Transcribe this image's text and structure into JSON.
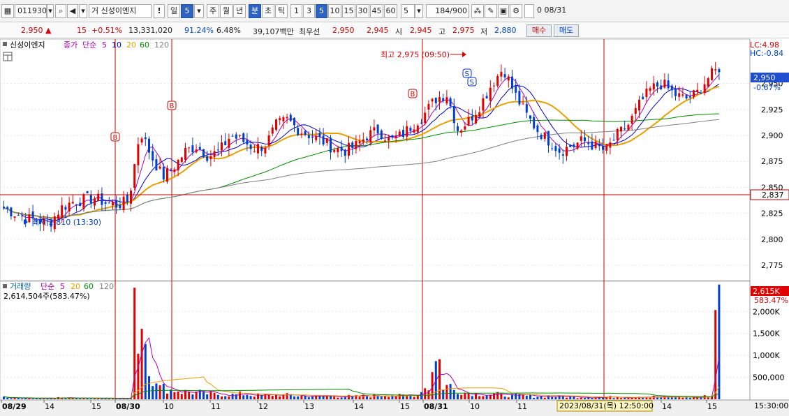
{
  "toolbar": {
    "code": "011930",
    "market_label": "거",
    "name": "신성이엔지",
    "warning": "!",
    "periods": [
      "일",
      "5",
      "주",
      "월",
      "년",
      "분",
      "초",
      "틱"
    ],
    "minutes": [
      "1",
      "3",
      "5",
      "10",
      "15",
      "30",
      "45",
      "60"
    ],
    "selected_minute": "5",
    "interval_value": "5",
    "bar_count": "184",
    "bar_total": "/900",
    "date": "08/31"
  },
  "quote": {
    "price": "2,950",
    "arrow": "▲",
    "change": "15",
    "change_pct": "+0.51%",
    "volume": "13,331,020",
    "ratio1": "91.24%",
    "ratio2": "6.48%",
    "amount": "39,107백만",
    "label_best": "최우선",
    "best_ask": "2,950",
    "best_bid": "2,945",
    "open_label": "시",
    "open": "2,945",
    "high_label": "고",
    "high": "2,975",
    "low_label": "저",
    "low": "2,880",
    "buy": "매수",
    "sell": "매도"
  },
  "price_panel": {
    "legend_name": "신성이엔지",
    "legend_ma": [
      "종가",
      "단순",
      "5",
      "10",
      "20",
      "60",
      "120"
    ],
    "lc": "LC:4.98",
    "hc": "HC:-0.84",
    "last_price": "2,950",
    "last_pct": "-0.67%",
    "crosshair_price": "2,837",
    "high_note": "최고 2,975 (09:50)",
    "low_note": "최저 2,810 (13:30)",
    "buy_marker": "B",
    "sell_marker": "S"
  },
  "volume_panel": {
    "legend": [
      "거래량",
      "단순",
      "5",
      "20",
      "60",
      "120"
    ],
    "info": "2,614,504주(583.47%)",
    "last_vol": "2,615K",
    "last_pct": "583.47%"
  },
  "time_axis": {
    "labels": [
      "08/29",
      "14",
      "15",
      "08/30",
      "10",
      "11",
      "12",
      "13",
      "14",
      "15",
      "08/31",
      "10",
      "11",
      "14",
      "15"
    ],
    "cursor_time": "2023/08/31(목) 12:50:00",
    "right_time": "15:30:00"
  },
  "chart_data": {
    "type": "candlestick",
    "price_ticks": [
      2775,
      2800,
      2825,
      2850,
      2875,
      2900,
      2925,
      2950
    ],
    "price_tick_labels": [
      "2,775",
      "2,800",
      "2,825",
      "2,850",
      "2,875",
      "2,900",
      "2,925",
      "2,950"
    ],
    "volume_ticks": [
      500000,
      1000000,
      1500000,
      2000000
    ],
    "volume_tick_labels": [
      "500,000",
      "1,000K",
      "1,500K",
      "2,000K"
    ],
    "ylim_price": [
      2763,
      2990
    ],
    "ylim_volume": [
      0,
      2450000
    ],
    "sessions": [
      "08/29",
      "08/30",
      "08/31"
    ],
    "ma_colors": {
      "ma5": "#b000b0",
      "ma10": "#0000cc",
      "ma20": "#e8a000",
      "ma60": "#008a00",
      "ma120": "#808080"
    },
    "up_color": "#e00000",
    "down_color": "#0040d0",
    "close_anchors": [
      2830,
      2825,
      2820,
      2818,
      2815,
      2830,
      2836,
      2838,
      2840,
      2835,
      2833,
      2837,
      2905,
      2880,
      2860,
      2870,
      2885,
      2890,
      2880,
      2885,
      2900,
      2895,
      2888,
      2890,
      2910,
      2915,
      2905,
      2900,
      2895,
      2888,
      2885,
      2890,
      2900,
      2905,
      2895,
      2900,
      2910,
      2920,
      2935,
      2940,
      2905,
      2915,
      2930,
      2950,
      2965,
      2940,
      2920,
      2905,
      2895,
      2885,
      2890,
      2895,
      2890,
      2885,
      2900,
      2910,
      2930,
      2945,
      2950,
      2940,
      2935,
      2940,
      2955,
      2965
    ],
    "volume_anchors": [
      60,
      40,
      30,
      30,
      25,
      40,
      35,
      30,
      30,
      25,
      20,
      20,
      2100,
      700,
      300,
      250,
      200,
      180,
      150,
      130,
      120,
      140,
      110,
      100,
      120,
      110,
      90,
      90,
      80,
      80,
      80,
      75,
      90,
      100,
      120,
      95,
      120,
      300,
      1000,
      350,
      250,
      180,
      150,
      130,
      110,
      100,
      90,
      80,
      80,
      75,
      70,
      60,
      60,
      60,
      60,
      70,
      80,
      70,
      60,
      60,
      55,
      50,
      80,
      2615
    ]
  }
}
